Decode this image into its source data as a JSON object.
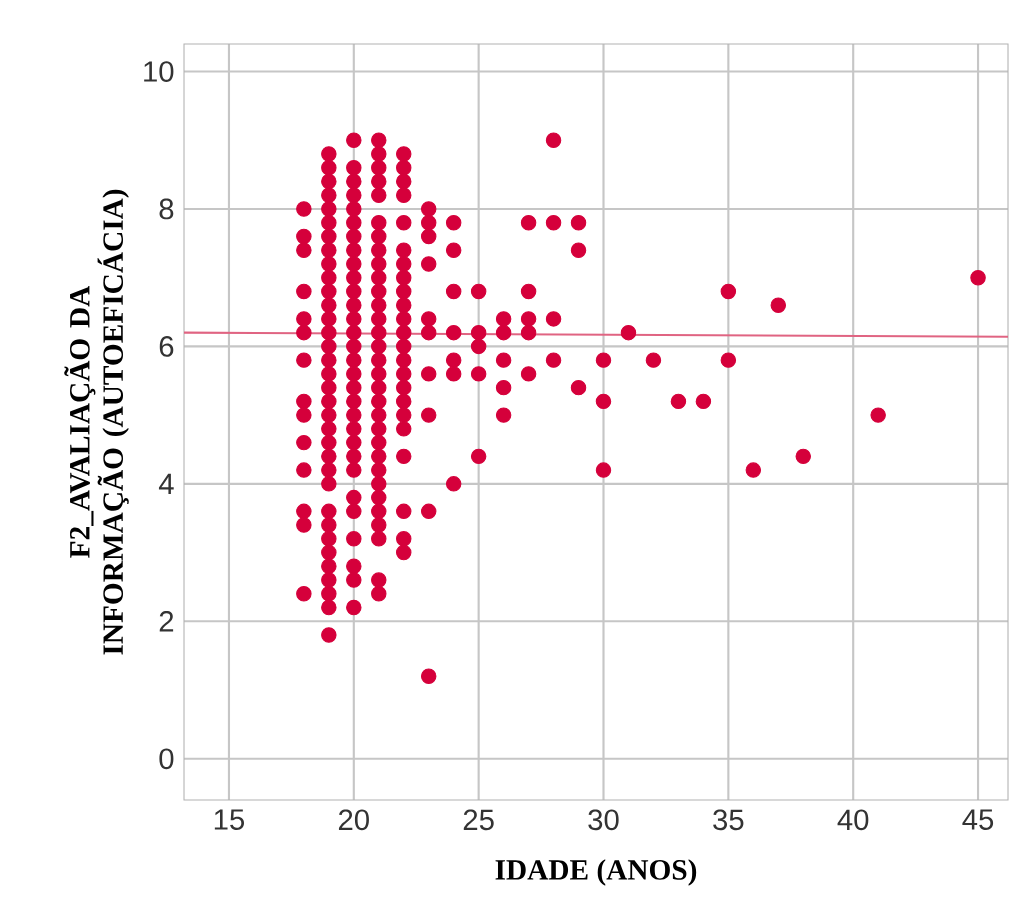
{
  "chart_data": {
    "type": "scatter",
    "xlabel": "IDADE (ANOS)",
    "ylabel": "F2_AVALIAÇÃO DA INFORMAÇÃO (AUTOEFICÁCIA)",
    "xlim": [
      13.2,
      46.2
    ],
    "ylim": [
      -0.6,
      10.4
    ],
    "xticks": [
      15,
      20,
      25,
      30,
      35,
      40,
      45
    ],
    "yticks": [
      0,
      2,
      4,
      6,
      8,
      10
    ],
    "grid": true,
    "marker": "circle",
    "series": [
      {
        "color": "#d5003b",
        "x": [
          18,
          18,
          18,
          18,
          18,
          18,
          18,
          18,
          18,
          18,
          18,
          18,
          18,
          18,
          19,
          19,
          19,
          19,
          19,
          19,
          19,
          19,
          19,
          19,
          19,
          19,
          19,
          19,
          19,
          19,
          19,
          19,
          19,
          19,
          19,
          19,
          19,
          19,
          19,
          19,
          19,
          19,
          19,
          19,
          19,
          19,
          19,
          19,
          20,
          20,
          20,
          20,
          20,
          20,
          20,
          20,
          20,
          20,
          20,
          20,
          20,
          20,
          20,
          20,
          20,
          20,
          20,
          20,
          20,
          20,
          20,
          20,
          20,
          20,
          20,
          20,
          20,
          20,
          21,
          21,
          21,
          21,
          21,
          21,
          21,
          21,
          21,
          21,
          21,
          21,
          21,
          21,
          21,
          21,
          21,
          21,
          21,
          21,
          21,
          21,
          21,
          21,
          21,
          21,
          21,
          21,
          21,
          21,
          21,
          22,
          22,
          22,
          22,
          22,
          22,
          22,
          22,
          22,
          22,
          22,
          22,
          22,
          22,
          22,
          22,
          22,
          22,
          22,
          22,
          22,
          22,
          22,
          23,
          23,
          23,
          23,
          23,
          23,
          23,
          23,
          23,
          23,
          24,
          24,
          24,
          24,
          24,
          24,
          24,
          25,
          25,
          25,
          25,
          25,
          26,
          26,
          26,
          26,
          26,
          27,
          27,
          27,
          27,
          27,
          28,
          28,
          28,
          28,
          29,
          29,
          29,
          30,
          30,
          30,
          31,
          32,
          33,
          34,
          35,
          35,
          36,
          37,
          38,
          41,
          45
        ],
        "values": [
          8.0,
          7.6,
          7.4,
          6.8,
          6.4,
          6.2,
          5.8,
          5.2,
          5.0,
          4.6,
          4.2,
          3.6,
          3.4,
          2.4,
          8.8,
          8.6,
          8.4,
          8.2,
          8.0,
          7.8,
          7.6,
          7.4,
          7.2,
          7.0,
          6.8,
          6.6,
          6.4,
          6.2,
          6.0,
          5.8,
          5.6,
          5.4,
          5.2,
          5.0,
          4.8,
          4.6,
          4.4,
          4.2,
          4.0,
          3.6,
          3.4,
          3.2,
          3.0,
          2.8,
          2.6,
          2.4,
          2.2,
          1.8,
          9.0,
          8.6,
          8.4,
          8.2,
          8.0,
          7.8,
          7.6,
          7.4,
          7.2,
          7.0,
          6.8,
          6.6,
          6.4,
          6.2,
          6.0,
          5.8,
          5.6,
          5.4,
          5.2,
          5.0,
          4.8,
          4.6,
          4.4,
          4.2,
          3.8,
          3.6,
          3.2,
          2.8,
          2.6,
          2.2,
          9.0,
          8.8,
          8.6,
          8.4,
          8.2,
          7.8,
          7.6,
          7.4,
          7.2,
          7.0,
          6.8,
          6.6,
          6.4,
          6.2,
          6.0,
          5.8,
          5.6,
          5.4,
          5.2,
          5.0,
          4.8,
          4.6,
          4.4,
          4.2,
          4.0,
          3.8,
          3.6,
          3.4,
          3.2,
          2.6,
          2.4,
          8.8,
          8.6,
          8.4,
          8.2,
          7.8,
          7.4,
          7.2,
          7.0,
          6.8,
          6.6,
          6.4,
          6.2,
          6.0,
          5.8,
          5.6,
          5.4,
          5.2,
          5.0,
          4.8,
          4.4,
          3.6,
          3.2,
          3.0,
          8.0,
          7.8,
          7.6,
          7.2,
          6.4,
          6.2,
          5.6,
          5.0,
          3.6,
          1.2,
          7.8,
          7.4,
          6.8,
          6.2,
          5.8,
          5.6,
          4.0,
          6.8,
          6.2,
          6.0,
          5.6,
          4.4,
          6.4,
          6.2,
          5.8,
          5.4,
          5.0,
          7.8,
          6.8,
          6.4,
          6.2,
          5.6,
          9.0,
          7.8,
          6.4,
          5.8,
          7.8,
          7.4,
          5.4,
          5.8,
          5.2,
          4.2,
          6.2,
          5.8,
          5.2,
          5.2,
          6.8,
          5.8,
          4.2,
          6.6,
          4.4,
          5.0,
          7.0
        ]
      },
      {
        "type": "line",
        "color": "#e06482",
        "marker": "none",
        "x": [
          13.2,
          46.2
        ],
        "values": [
          6.2,
          6.14
        ]
      }
    ]
  }
}
